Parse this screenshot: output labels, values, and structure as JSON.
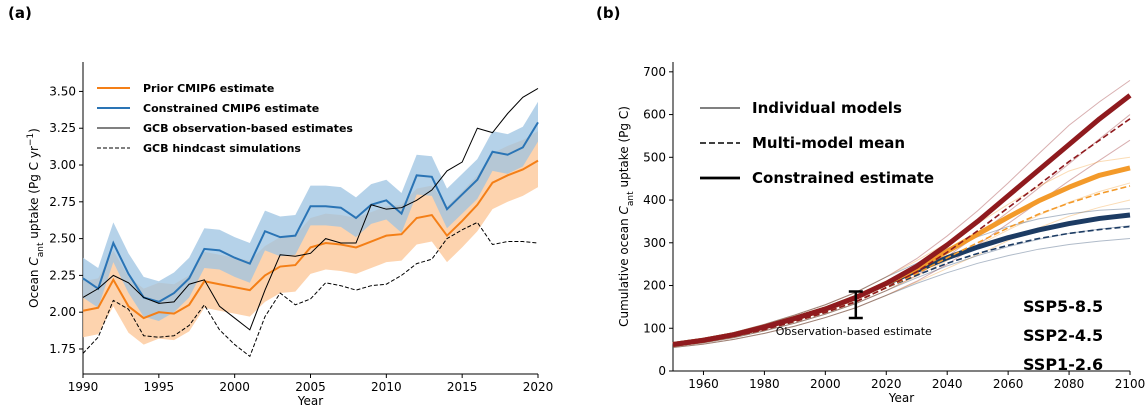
{
  "chart_data": [
    {
      "type": "line",
      "panel_label": "(a)",
      "xlabel": "Year",
      "ylabel": [
        {
          "text": "Ocean "
        },
        {
          "text": "C",
          "style": "italic"
        },
        {
          "text": "ant",
          "style": "sub"
        },
        {
          "text": " uptake (Pg C yr"
        },
        {
          "text": "−1",
          "style": "sup"
        },
        {
          "text": ")"
        }
      ],
      "x": [
        1990,
        1991,
        1992,
        1993,
        1994,
        1995,
        1996,
        1997,
        1998,
        1999,
        2000,
        2001,
        2002,
        2003,
        2004,
        2005,
        2006,
        2007,
        2008,
        2009,
        2010,
        2011,
        2012,
        2013,
        2014,
        2015,
        2016,
        2017,
        2018,
        2019,
        2020
      ],
      "xlim": [
        1990,
        2020
      ],
      "xticks": [
        1990,
        1995,
        2000,
        2005,
        2010,
        2015,
        2020
      ],
      "ylim": [
        1.58,
        3.7
      ],
      "yticks": [
        1.75,
        {
          "value": 2,
          "label": "2.00"
        },
        2.25,
        {
          "value": 2.5,
          "label": "2.50"
        },
        2.75,
        {
          "value": 3,
          "label": "3.00"
        },
        3.25,
        {
          "value": 3.5,
          "label": "3.50"
        }
      ],
      "legend": "upper left",
      "series": [
        {
          "name": "Prior CMIP6 estimate",
          "color": "#f47f17",
          "band_color": "#fdc89a",
          "width": 2,
          "values": [
            2.01,
            2.03,
            2.22,
            2.04,
            1.96,
            2.0,
            1.99,
            2.05,
            2.21,
            2.19,
            2.17,
            2.15,
            2.25,
            2.31,
            2.32,
            2.44,
            2.47,
            2.46,
            2.44,
            2.48,
            2.52,
            2.53,
            2.64,
            2.66,
            2.52,
            2.62,
            2.73,
            2.88,
            2.93,
            2.97,
            3.03
          ],
          "lower": [
            1.83,
            1.85,
            2.04,
            1.86,
            1.78,
            1.82,
            1.81,
            1.87,
            2.03,
            2.01,
            1.99,
            1.97,
            2.07,
            2.13,
            2.14,
            2.26,
            2.29,
            2.28,
            2.26,
            2.3,
            2.34,
            2.35,
            2.46,
            2.48,
            2.34,
            2.44,
            2.55,
            2.7,
            2.75,
            2.79,
            2.85
          ],
          "upper": [
            2.21,
            2.23,
            2.42,
            2.24,
            2.16,
            2.2,
            2.19,
            2.25,
            2.41,
            2.39,
            2.37,
            2.35,
            2.45,
            2.51,
            2.52,
            2.64,
            2.67,
            2.66,
            2.64,
            2.68,
            2.72,
            2.73,
            2.84,
            2.86,
            2.72,
            2.82,
            2.93,
            3.08,
            3.13,
            3.17,
            3.23
          ]
        },
        {
          "name": "Constrained CMIP6 estimate",
          "color": "#2a74b5",
          "band_color": "#9cc3e2",
          "width": 2,
          "values": [
            2.23,
            2.16,
            2.47,
            2.26,
            2.1,
            2.07,
            2.13,
            2.23,
            2.43,
            2.42,
            2.37,
            2.33,
            2.55,
            2.51,
            2.52,
            2.72,
            2.72,
            2.71,
            2.64,
            2.73,
            2.76,
            2.67,
            2.93,
            2.92,
            2.7,
            2.8,
            2.9,
            3.09,
            3.07,
            3.12,
            3.29
          ],
          "lower": [
            2.1,
            2.03,
            2.34,
            2.13,
            1.97,
            1.94,
            2.0,
            2.1,
            2.3,
            2.29,
            2.24,
            2.2,
            2.42,
            2.38,
            2.39,
            2.59,
            2.59,
            2.58,
            2.51,
            2.6,
            2.63,
            2.54,
            2.8,
            2.79,
            2.57,
            2.67,
            2.77,
            2.96,
            2.94,
            2.99,
            3.16
          ],
          "upper": [
            2.37,
            2.3,
            2.61,
            2.4,
            2.24,
            2.21,
            2.27,
            2.37,
            2.57,
            2.56,
            2.51,
            2.47,
            2.69,
            2.65,
            2.66,
            2.86,
            2.86,
            2.85,
            2.78,
            2.87,
            2.9,
            2.81,
            3.07,
            3.06,
            2.84,
            2.94,
            3.04,
            3.23,
            3.21,
            3.26,
            3.43
          ]
        },
        {
          "name": "GCB observation-based estimates",
          "color": "#000000",
          "width": 1,
          "values": [
            2.1,
            2.16,
            2.25,
            2.2,
            2.1,
            2.06,
            2.07,
            2.19,
            2.22,
            2.04,
            1.96,
            1.88,
            2.15,
            2.39,
            2.38,
            2.4,
            2.5,
            2.47,
            2.47,
            2.73,
            2.7,
            2.71,
            2.76,
            2.83,
            2.96,
            3.02,
            3.25,
            3.22,
            3.35,
            3.46,
            3.52
          ]
        },
        {
          "name": "GCB hindcast simulations",
          "color": "#000000",
          "width": 1,
          "dashed": true,
          "values": [
            1.72,
            1.83,
            2.08,
            2.02,
            1.84,
            1.83,
            1.84,
            1.91,
            2.05,
            1.88,
            1.78,
            1.7,
            1.97,
            2.13,
            2.05,
            2.09,
            2.2,
            2.18,
            2.15,
            2.18,
            2.19,
            2.25,
            2.33,
            2.36,
            2.5,
            2.56,
            2.61,
            2.46,
            2.48,
            2.48,
            2.47
          ]
        }
      ]
    },
    {
      "type": "scenario",
      "panel_label": "(b)",
      "xlabel": "Year",
      "ylabel": [
        {
          "text": "Cumulative ocean "
        },
        {
          "text": "C",
          "style": "italic"
        },
        {
          "text": "ant",
          "style": "sub"
        },
        {
          "text": " uptake (Pg C)"
        }
      ],
      "x": [
        1950,
        1960,
        1970,
        1980,
        1990,
        2000,
        2010,
        2020,
        2030,
        2040,
        2050,
        2060,
        2070,
        2080,
        2090,
        2100
      ],
      "xlim": [
        1950,
        2100
      ],
      "xticks": [
        1960,
        1980,
        2000,
        2020,
        2040,
        2060,
        2080,
        2100
      ],
      "ylim": [
        0,
        723
      ],
      "yticks": [
        0,
        100,
        200,
        300,
        400,
        500,
        600,
        700
      ],
      "legend": "upper left",
      "legend_items": [
        "Individual models",
        "Multi-model mean",
        "Constrained estimate"
      ],
      "annotation": {
        "text": "Observation-based estimate",
        "x": 2010,
        "value": 155,
        "error": 31
      },
      "series": [
        {
          "name": "SSP5-8.5",
          "color": "#8f1a1e",
          "values": [
            62,
            72,
            85,
            103,
            123,
            145,
            172,
            205,
            245,
            295,
            350,
            410,
            470,
            530,
            590,
            645
          ],
          "mean": [
            60,
            69,
            81,
            97,
            116,
            137,
            162,
            195,
            232,
            278,
            328,
            382,
            435,
            490,
            540,
            590
          ],
          "models": [
            [
              65,
              76,
              90,
              109,
              131,
              155,
              184,
              220,
              263,
              316,
              375,
              440,
              508,
              575,
              630,
              680
            ],
            [
              58,
              66,
              78,
              94,
              112,
              133,
              158,
              188,
              224,
              268,
              318,
              372,
              428,
              485,
              543,
              600
            ],
            [
              55,
              63,
              74,
              88,
              105,
              125,
              148,
              177,
              210,
              250,
              295,
              345,
              395,
              445,
              493,
              540
            ]
          ]
        },
        {
          "name": "SSP2-4.5",
          "color": "#f39a2a",
          "values": [
            62,
            72,
            85,
            103,
            123,
            145,
            172,
            205,
            240,
            280,
            320,
            360,
            398,
            430,
            458,
            475
          ],
          "mean": [
            60,
            69,
            81,
            97,
            116,
            137,
            162,
            195,
            228,
            265,
            300,
            335,
            367,
            393,
            415,
            433
          ],
          "models": [
            [
              65,
              76,
              90,
              109,
              131,
              155,
              184,
              220,
              258,
              300,
              345,
              390,
              432,
              468,
              490,
              500
            ],
            [
              58,
              66,
              78,
              94,
              112,
              133,
              158,
              188,
              222,
              258,
              294,
              330,
              364,
              395,
              420,
              440
            ],
            [
              55,
              63,
              74,
              88,
              105,
              125,
              148,
              177,
              208,
              240,
              272,
              305,
              335,
              362,
              383,
              400
            ]
          ]
        },
        {
          "name": "SSP1-2.6",
          "color": "#1c3b63",
          "values": [
            62,
            72,
            85,
            103,
            123,
            145,
            172,
            205,
            235,
            265,
            290,
            312,
            330,
            345,
            357,
            365
          ],
          "mean": [
            60,
            69,
            81,
            97,
            116,
            137,
            162,
            195,
            224,
            252,
            275,
            294,
            310,
            322,
            331,
            338
          ],
          "models": [
            [
              65,
              76,
              90,
              109,
              131,
              155,
              184,
              220,
              252,
              286,
              314,
              338,
              356,
              368,
              376,
              380
            ],
            [
              58,
              66,
              78,
              94,
              112,
              133,
              158,
              188,
              218,
              246,
              270,
              291,
              308,
              322,
              332,
              340
            ],
            [
              55,
              63,
              74,
              88,
              105,
              125,
              148,
              177,
              205,
              230,
              252,
              270,
              285,
              296,
              304,
              310
            ]
          ]
        }
      ]
    }
  ]
}
